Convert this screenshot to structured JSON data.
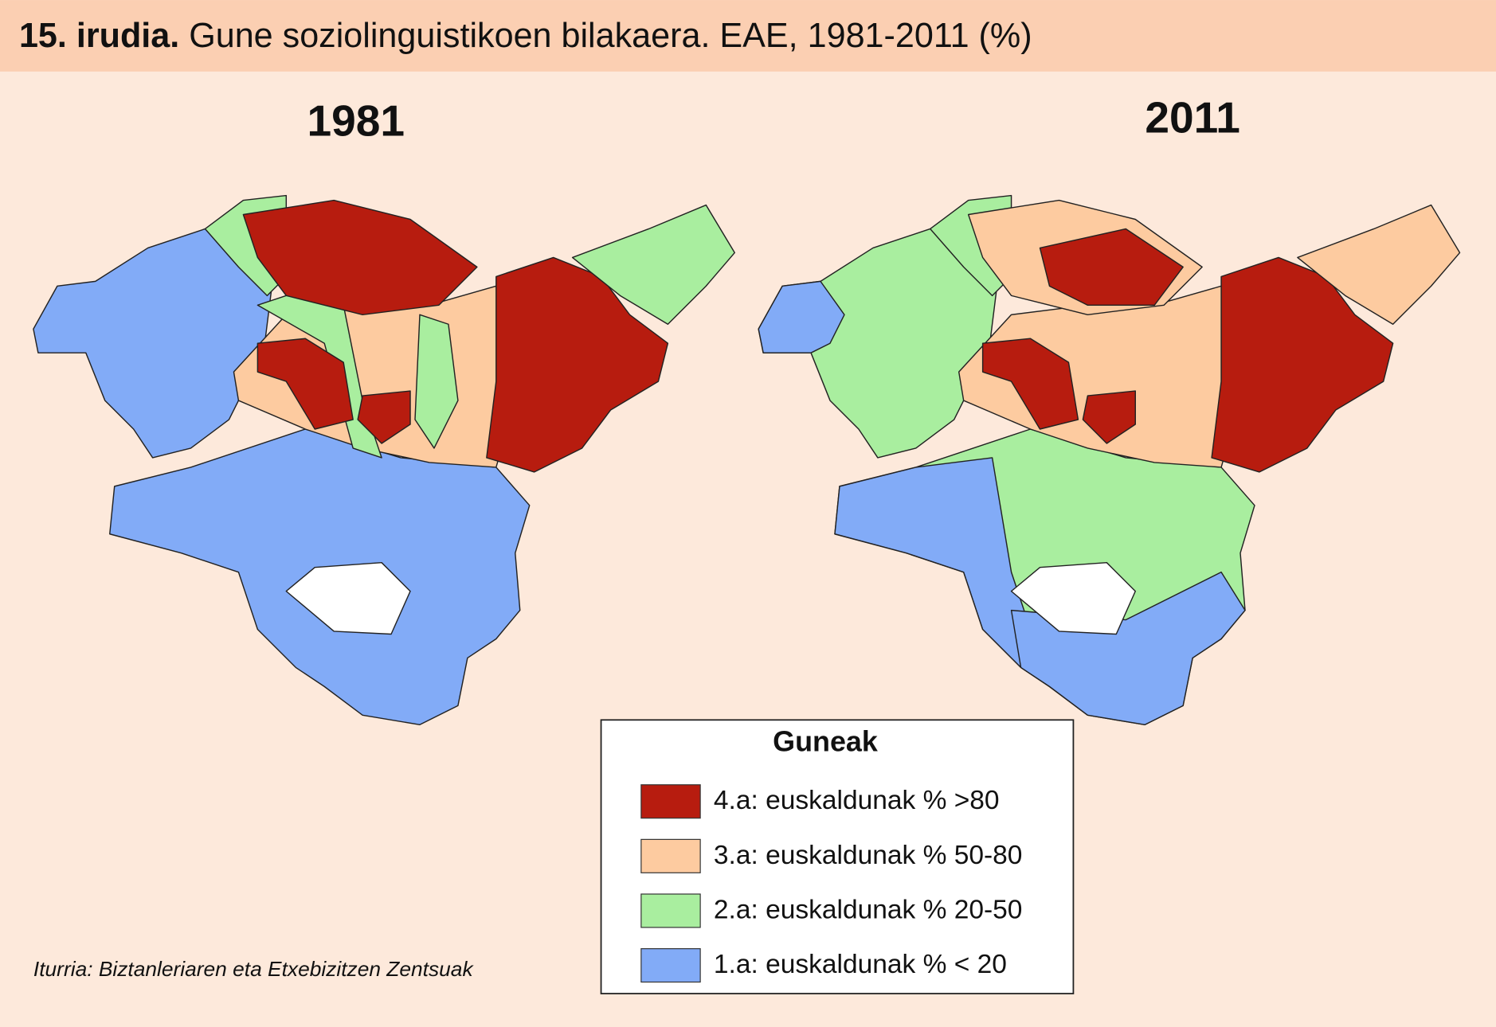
{
  "header": {
    "number": "15. irudia.",
    "title": "Gune soziolinguistikoen bilakaera. EAE, 1981-2011 (%)"
  },
  "maps": [
    {
      "title": "1981"
    },
    {
      "title": "2011"
    }
  ],
  "legend": {
    "title": "Guneak",
    "items": [
      {
        "label": "4.a: euskaldunak % >80",
        "color": "#b71c0f"
      },
      {
        "label": "3.a: euskaldunak % 50-80",
        "color": "#fdcba0"
      },
      {
        "label": "2.a: euskaldunak % 20-50",
        "color": "#a9ee9f"
      },
      {
        "label": "1.a: euskaldunak % < 20",
        "color": "#82abf7"
      }
    ]
  },
  "source": "Iturria: Biztanleriaren eta Etxebizitzen Zentsuak"
}
